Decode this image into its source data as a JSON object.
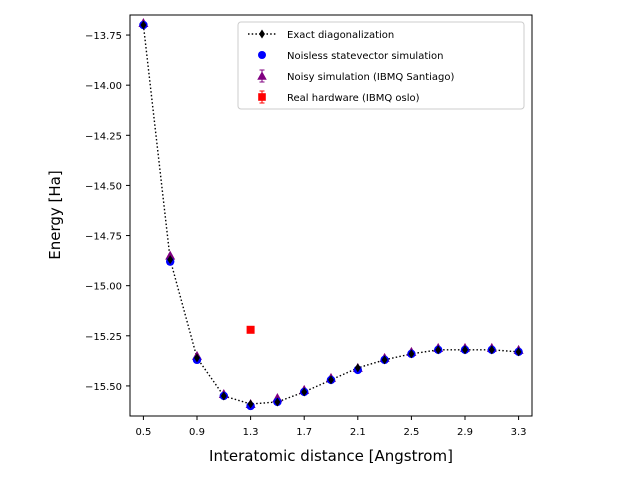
{
  "chart_data": {
    "type": "line",
    "title": "",
    "xlabel": "Interatomic distance [Angstrom]",
    "ylabel": "Energy [Ha]",
    "xlim": [
      0.4,
      3.4
    ],
    "ylim": [
      -15.65,
      -13.65
    ],
    "xticks": [
      0.5,
      0.9,
      1.3,
      1.7,
      2.1,
      2.5,
      2.9,
      3.3
    ],
    "xtick_labels": [
      "0.5",
      "0.9",
      "1.3",
      "1.7",
      "2.1",
      "2.5",
      "2.9",
      "3.3"
    ],
    "yticks": [
      -13.75,
      -14.0,
      -14.25,
      -14.5,
      -14.75,
      -15.0,
      -15.25,
      -15.5
    ],
    "ytick_labels": [
      "−13.75",
      "−14.00",
      "−14.25",
      "−14.50",
      "−14.75",
      "−15.00",
      "−15.25",
      "−15.50"
    ],
    "grid": false,
    "legend_position": "top-right",
    "series": [
      {
        "name": "Exact diagonalization",
        "marker": "diamond",
        "line": "dotted",
        "color": "#000000",
        "x": [
          0.5,
          0.7,
          0.9,
          1.1,
          1.3,
          1.5,
          1.7,
          1.9,
          2.1,
          2.3,
          2.5,
          2.7,
          2.9,
          3.1,
          3.3
        ],
        "y": [
          -13.7,
          -14.87,
          -15.36,
          -15.55,
          -15.59,
          -15.58,
          -15.53,
          -15.47,
          -15.41,
          -15.37,
          -15.34,
          -15.32,
          -15.32,
          -15.32,
          -15.33
        ]
      },
      {
        "name": "Noisless statevector simulation",
        "marker": "circle",
        "line": "none",
        "color": "#0000ff",
        "x": [
          0.5,
          0.7,
          0.9,
          1.1,
          1.3,
          1.5,
          1.7,
          1.9,
          2.1,
          2.3,
          2.5,
          2.7,
          2.9,
          3.1,
          3.3
        ],
        "y": [
          -13.7,
          -14.88,
          -15.37,
          -15.55,
          -15.6,
          -15.58,
          -15.53,
          -15.47,
          -15.42,
          -15.37,
          -15.34,
          -15.32,
          -15.32,
          -15.32,
          -15.33
        ]
      },
      {
        "name": "Noisy simulation (IBMQ Santiago)",
        "marker": "triangle",
        "line": "none",
        "color": "#800080",
        "x": [
          0.5,
          0.7,
          0.9,
          1.1,
          1.3,
          1.5,
          1.7,
          1.9,
          2.1,
          2.3,
          2.5,
          2.7,
          2.9,
          3.1,
          3.3
        ],
        "y": [
          -13.69,
          -14.85,
          -15.35,
          -15.54,
          -15.59,
          -15.56,
          -15.52,
          -15.46,
          -15.41,
          -15.36,
          -15.33,
          -15.31,
          -15.31,
          -15.31,
          -15.32
        ]
      },
      {
        "name": "Real hardware (IBMQ oslo)",
        "marker": "square",
        "line": "none",
        "color": "#ff0000",
        "x": [
          1.3
        ],
        "y": [
          -15.22
        ]
      }
    ]
  }
}
